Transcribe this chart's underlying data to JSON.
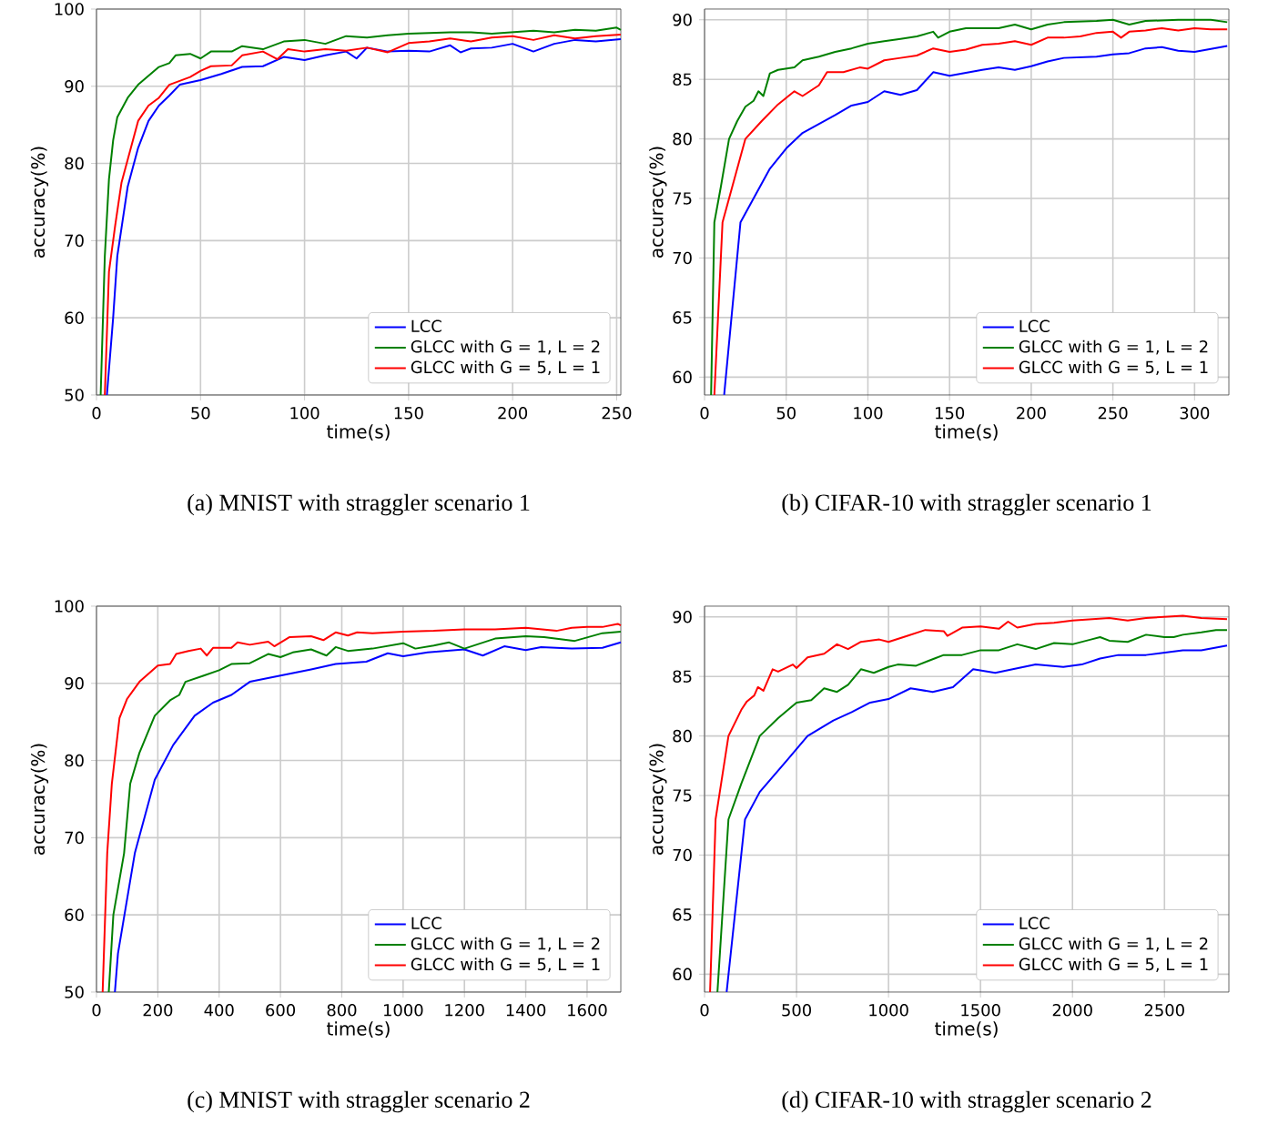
{
  "chart_data": [
    {
      "type": "line",
      "xlabel": "time(s)",
      "ylabel": "accuracy(%)",
      "annotations": [
        "(a) MNIST with straggler scenario 1"
      ],
      "xlim": [
        0,
        252
      ],
      "ylim": [
        50,
        100
      ],
      "xticks": [
        0,
        50,
        100,
        150,
        200,
        250
      ],
      "yticks": [
        50,
        60,
        70,
        80,
        90,
        100
      ],
      "grid": true,
      "legend": "bottom right",
      "line_style": "solid",
      "series": [
        {
          "name": "LCC",
          "color": "#0000ff",
          "x": [
            5,
            8,
            10,
            15,
            20,
            25,
            30,
            35,
            40,
            50,
            60,
            70,
            80,
            90,
            100,
            110,
            120,
            125,
            130,
            140,
            150,
            160,
            170,
            175,
            180,
            190,
            200,
            210,
            220,
            230,
            240,
            252
          ],
          "values": [
            50,
            60,
            68,
            77,
            82,
            85.5,
            87.5,
            88.8,
            90.2,
            90.8,
            91.6,
            92.5,
            92.6,
            93.8,
            93.4,
            94,
            94.5,
            93.6,
            95,
            94.5,
            94.6,
            94.5,
            95.3,
            94.4,
            94.9,
            95,
            95.5,
            94.5,
            95.5,
            96,
            95.8,
            96.1
          ]
        },
        {
          "name": "GLCC with G = 1, L = 2",
          "color": "#008000",
          "x": [
            2,
            4,
            6,
            8,
            10,
            15,
            20,
            30,
            35,
            38,
            45,
            50,
            55,
            65,
            70,
            80,
            90,
            100,
            110,
            120,
            130,
            140,
            150,
            170,
            180,
            190,
            200,
            210,
            220,
            230,
            240,
            250,
            252
          ],
          "values": [
            50,
            68,
            78,
            83,
            86,
            88.5,
            90.2,
            92.5,
            93,
            94,
            94.2,
            93.6,
            94.5,
            94.5,
            95.2,
            94.8,
            95.8,
            96,
            95.5,
            96.5,
            96.3,
            96.6,
            96.8,
            97,
            97,
            96.8,
            97,
            97.2,
            97,
            97.3,
            97.2,
            97.6,
            97.3
          ]
        },
        {
          "name": "GLCC with G = 5, L = 1",
          "color": "#ff0000",
          "x": [
            4,
            6,
            9,
            12,
            20,
            25,
            30,
            35,
            45,
            50,
            55,
            65,
            70,
            80,
            87,
            92,
            100,
            110,
            120,
            130,
            140,
            150,
            160,
            170,
            180,
            190,
            200,
            210,
            220,
            230,
            240,
            252
          ],
          "values": [
            50,
            66,
            72,
            77.5,
            85.5,
            87.5,
            88.5,
            90.2,
            91.2,
            92,
            92.6,
            92.7,
            94,
            94.5,
            93.5,
            94.8,
            94.5,
            94.8,
            94.6,
            95,
            94.4,
            95.6,
            95.8,
            96.2,
            95.8,
            96.3,
            96.5,
            96,
            96.6,
            96.2,
            96.5,
            96.7
          ]
        }
      ]
    },
    {
      "type": "line",
      "xlabel": "time(s)",
      "ylabel": "accuracy(%)",
      "annotations": [
        "(b) CIFAR-10 with straggler scenario 1"
      ],
      "xlim": [
        0,
        321
      ],
      "ylim": [
        58.5,
        90.9
      ],
      "xticks": [
        0,
        50,
        100,
        150,
        200,
        250,
        300
      ],
      "yticks": [
        60,
        65,
        70,
        75,
        80,
        85,
        90
      ],
      "grid": true,
      "legend": "bottom right",
      "line_style": "solid",
      "series": [
        {
          "name": "LCC",
          "color": "#0000ff",
          "x": [
            12,
            22,
            30,
            40,
            50,
            60,
            80,
            90,
            100,
            110,
            120,
            130,
            140,
            150,
            170,
            180,
            190,
            200,
            210,
            220,
            240,
            250,
            260,
            270,
            280,
            290,
            300,
            320
          ],
          "values": [
            58.5,
            73,
            75,
            77.5,
            79.2,
            80.5,
            82,
            82.8,
            83.1,
            84,
            83.7,
            84.1,
            85.6,
            85.3,
            85.8,
            86,
            85.8,
            86.1,
            86.5,
            86.8,
            86.9,
            87.1,
            87.2,
            87.6,
            87.7,
            87.4,
            87.3,
            87.8
          ]
        },
        {
          "name": "GLCC with G = 1, L = 2",
          "color": "#008000",
          "x": [
            4,
            6,
            10,
            15,
            20,
            25,
            30,
            33,
            36,
            40,
            45,
            55,
            60,
            70,
            80,
            90,
            100,
            110,
            120,
            130,
            140,
            143,
            150,
            160,
            180,
            190,
            200,
            210,
            220,
            240,
            250,
            260,
            270,
            290,
            300,
            310,
            320
          ],
          "values": [
            58.5,
            73,
            76,
            80,
            81.5,
            82.7,
            83.2,
            84,
            83.6,
            85.5,
            85.8,
            86,
            86.6,
            86.9,
            87.3,
            87.6,
            88,
            88.2,
            88.4,
            88.6,
            89,
            88.5,
            89,
            89.3,
            89.3,
            89.6,
            89.2,
            89.6,
            89.8,
            89.9,
            90,
            89.6,
            89.9,
            90,
            90,
            90,
            89.8
          ]
        },
        {
          "name": "GLCC with G = 5, L = 1",
          "color": "#ff0000",
          "x": [
            6,
            11,
            20,
            25,
            35,
            45,
            55,
            60,
            70,
            75,
            85,
            95,
            100,
            110,
            120,
            130,
            140,
            150,
            160,
            170,
            180,
            190,
            200,
            210,
            220,
            230,
            240,
            250,
            255,
            260,
            270,
            280,
            290,
            300,
            310,
            320
          ],
          "values": [
            58.5,
            73,
            77.5,
            80,
            81.5,
            82.9,
            84,
            83.6,
            84.5,
            85.6,
            85.6,
            86,
            85.9,
            86.6,
            86.8,
            87,
            87.6,
            87.3,
            87.5,
            87.9,
            88,
            88.2,
            87.9,
            88.5,
            88.5,
            88.6,
            88.9,
            89,
            88.5,
            89,
            89.1,
            89.3,
            89.1,
            89.3,
            89.2,
            89.2
          ]
        }
      ]
    },
    {
      "type": "line",
      "xlabel": "time(s)",
      "ylabel": "accuracy(%)",
      "annotations": [
        "(c) MNIST with straggler scenario 2"
      ],
      "xlim": [
        0,
        1710
      ],
      "ylim": [
        50,
        100
      ],
      "xticks": [
        0,
        200,
        400,
        600,
        800,
        1000,
        1200,
        1400,
        1600
      ],
      "yticks": [
        50,
        60,
        70,
        80,
        90,
        100
      ],
      "grid": true,
      "legend": "bottom right",
      "line_style": "solid",
      "series": [
        {
          "name": "LCC",
          "color": "#0000ff",
          "x": [
            60,
            70,
            125,
            190,
            250,
            320,
            380,
            440,
            500,
            600,
            700,
            780,
            880,
            950,
            1000,
            1080,
            1200,
            1260,
            1330,
            1400,
            1450,
            1550,
            1650,
            1710
          ],
          "values": [
            50,
            55,
            68,
            77.5,
            82,
            85.8,
            87.5,
            88.5,
            90.2,
            91,
            91.8,
            92.5,
            92.8,
            93.9,
            93.5,
            94,
            94.4,
            93.6,
            94.8,
            94.3,
            94.7,
            94.5,
            94.6,
            95.3
          ]
        },
        {
          "name": "GLCC with G = 1, L = 2",
          "color": "#008000",
          "x": [
            40,
            55,
            90,
            110,
            140,
            190,
            240,
            270,
            290,
            350,
            400,
            440,
            500,
            560,
            600,
            640,
            700,
            750,
            780,
            820,
            900,
            1000,
            1040,
            1100,
            1150,
            1200,
            1300,
            1400,
            1460,
            1560,
            1650,
            1710
          ],
          "values": [
            50,
            60,
            68,
            77,
            81,
            85.8,
            87.8,
            88.5,
            90.2,
            91,
            91.7,
            92.5,
            92.6,
            93.8,
            93.4,
            94,
            94.4,
            93.6,
            94.7,
            94.2,
            94.5,
            95.2,
            94.5,
            94.9,
            95.3,
            94.5,
            95.8,
            96.1,
            96,
            95.5,
            96.5,
            96.7
          ]
        },
        {
          "name": "GLCC with G = 5, L = 1",
          "color": "#ff0000",
          "x": [
            20,
            35,
            50,
            75,
            100,
            140,
            200,
            240,
            260,
            300,
            340,
            360,
            380,
            440,
            460,
            500,
            560,
            580,
            630,
            700,
            740,
            780,
            820,
            850,
            900,
            1000,
            1100,
            1200,
            1300,
            1400,
            1500,
            1550,
            1600,
            1650,
            1700,
            1710
          ],
          "values": [
            50,
            68,
            77,
            85.5,
            88,
            90.2,
            92.3,
            92.5,
            93.8,
            94.2,
            94.5,
            93.6,
            94.6,
            94.6,
            95.3,
            95,
            95.4,
            94.8,
            96,
            96.1,
            95.6,
            96.6,
            96.2,
            96.6,
            96.5,
            96.7,
            96.8,
            97,
            97,
            97.2,
            96.8,
            97.2,
            97.3,
            97.3,
            97.7,
            97.5
          ]
        }
      ]
    },
    {
      "type": "line",
      "xlabel": "time(s)",
      "ylabel": "accuracy(%)",
      "annotations": [
        "(d) CIFAR-10 with straggler scenario 2"
      ],
      "xlim": [
        0,
        2850
      ],
      "ylim": [
        58.5,
        90.9
      ],
      "xticks": [
        0,
        500,
        1000,
        1500,
        2000,
        2500
      ],
      "yticks": [
        60,
        65,
        70,
        75,
        80,
        85,
        90
      ],
      "grid": true,
      "legend": "bottom right",
      "line_style": "solid",
      "series": [
        {
          "name": "LCC",
          "color": "#0000ff",
          "x": [
            120,
            220,
            300,
            450,
            560,
            700,
            800,
            900,
            1000,
            1120,
            1240,
            1350,
            1460,
            1580,
            1800,
            1950,
            2050,
            2150,
            2250,
            2400,
            2500,
            2600,
            2700,
            2840
          ],
          "values": [
            58.5,
            73,
            75.3,
            78,
            80,
            81.3,
            82,
            82.8,
            83.1,
            84,
            83.7,
            84.1,
            85.6,
            85.3,
            86,
            85.8,
            86,
            86.5,
            86.8,
            86.8,
            87,
            87.2,
            87.2,
            87.6
          ]
        },
        {
          "name": "GLCC with G = 1, L = 2",
          "color": "#008000",
          "x": [
            70,
            130,
            200,
            300,
            400,
            500,
            580,
            650,
            720,
            780,
            850,
            920,
            1000,
            1050,
            1150,
            1250,
            1300,
            1400,
            1500,
            1600,
            1700,
            1800,
            1900,
            2000,
            2100,
            2150,
            2200,
            2300,
            2400,
            2500,
            2550,
            2600,
            2700,
            2780,
            2840
          ],
          "values": [
            58.5,
            73,
            76,
            80,
            81.5,
            82.8,
            83,
            84,
            83.7,
            84.3,
            85.6,
            85.3,
            85.8,
            86,
            85.9,
            86.5,
            86.8,
            86.8,
            87.2,
            87.2,
            87.7,
            87.3,
            87.8,
            87.7,
            88.1,
            88.3,
            88,
            87.9,
            88.5,
            88.3,
            88.3,
            88.5,
            88.7,
            88.9,
            88.9
          ]
        },
        {
          "name": "GLCC with G = 5, L = 1",
          "color": "#ff0000",
          "x": [
            30,
            60,
            130,
            200,
            230,
            270,
            290,
            320,
            370,
            400,
            480,
            500,
            560,
            650,
            720,
            780,
            850,
            950,
            1000,
            1100,
            1200,
            1300,
            1320,
            1400,
            1500,
            1600,
            1650,
            1700,
            1800,
            1900,
            2000,
            2200,
            2300,
            2400,
            2600,
            2700,
            2840
          ],
          "values": [
            58.5,
            73,
            80,
            82.2,
            82.9,
            83.4,
            84.1,
            83.8,
            85.6,
            85.4,
            86,
            85.7,
            86.6,
            86.9,
            87.7,
            87.3,
            87.9,
            88.1,
            87.9,
            88.4,
            88.9,
            88.8,
            88.4,
            89.1,
            89.2,
            89,
            89.6,
            89.1,
            89.4,
            89.5,
            89.7,
            89.9,
            89.7,
            89.9,
            90.1,
            89.9,
            89.8
          ]
        }
      ]
    }
  ]
}
